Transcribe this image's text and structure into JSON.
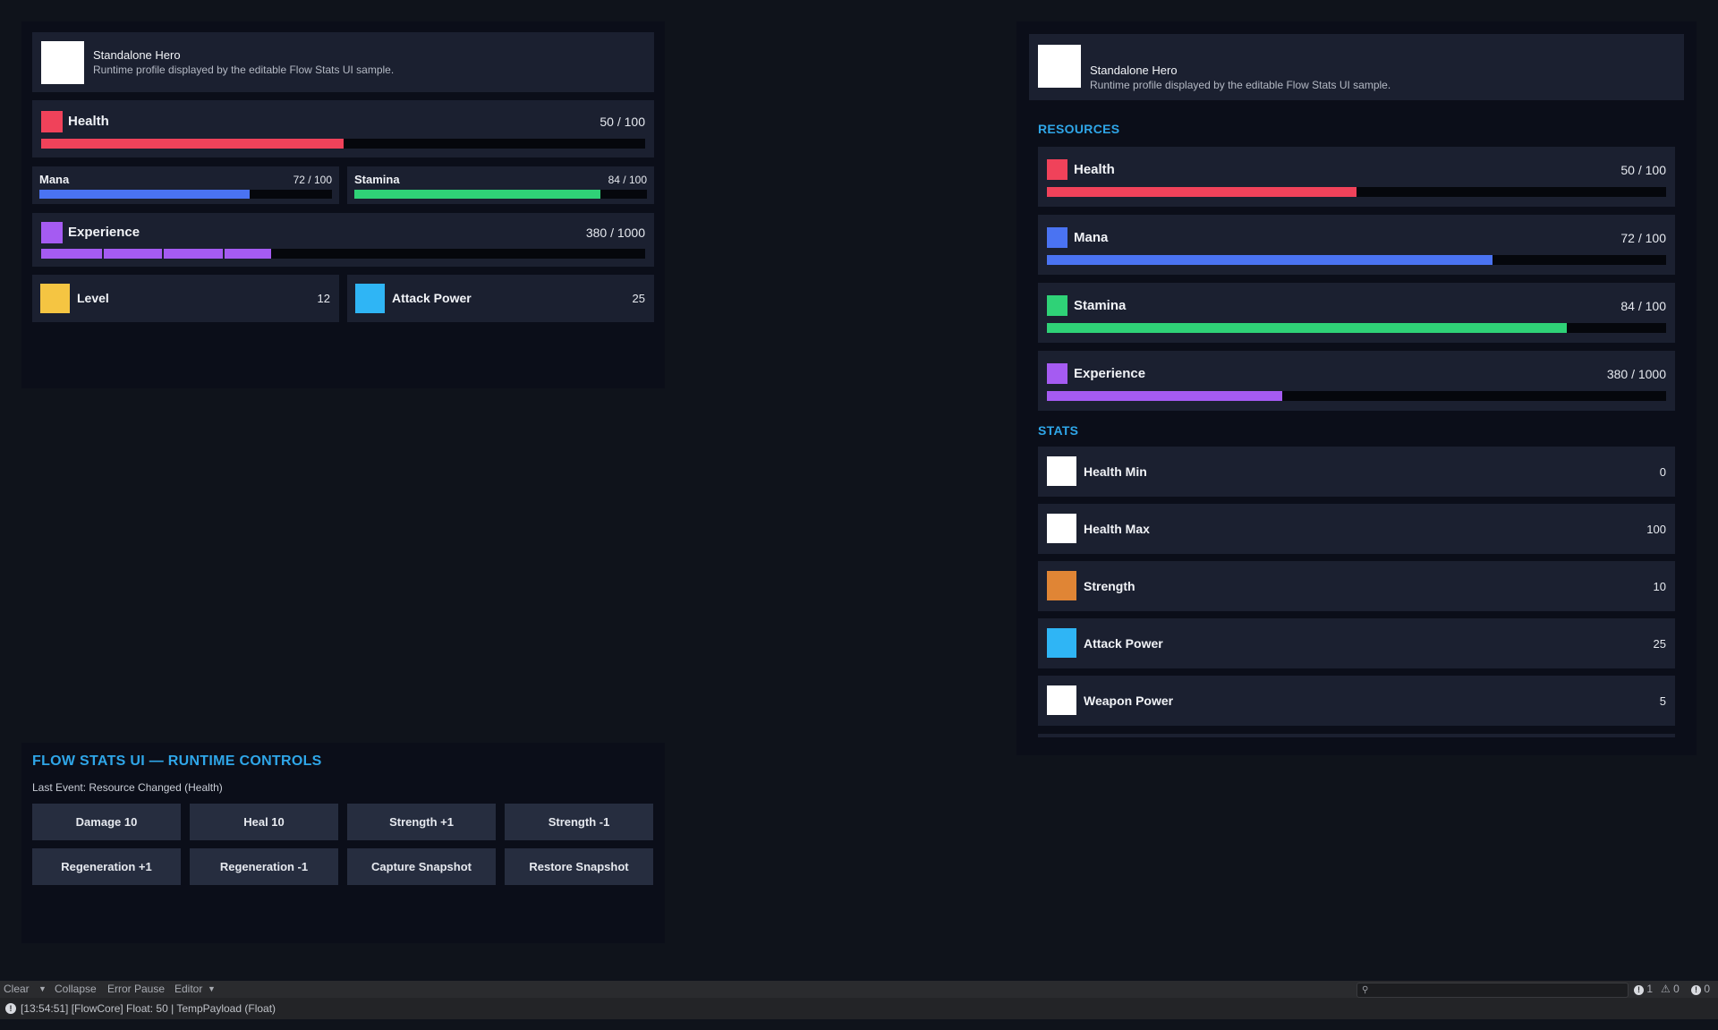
{
  "colors": {
    "health": "#f0425a",
    "mana": "#4a73f2",
    "stamina": "#2fd277",
    "experience": "#a55bf2",
    "level": "#f5c542",
    "attack_power": "#2fb5f5",
    "strength": "#e08535",
    "white": "#ffffff",
    "accent": "#2fa6e8"
  },
  "left_panel": {
    "profile": {
      "avatar": "avatar",
      "name": "Standalone Hero",
      "subtitle": "Runtime profile displayed by the editable Flow Stats UI sample."
    },
    "health": {
      "label": "Health",
      "value_text": "50 / 100",
      "fraction": 0.5
    },
    "mana": {
      "label": "Mana",
      "value_text": "72 / 100",
      "fraction": 0.72
    },
    "stamina": {
      "label": "Stamina",
      "value_text": "84 / 100",
      "fraction": 0.84
    },
    "experience": {
      "label": "Experience",
      "value_text": "380 / 1000",
      "fraction": 0.38,
      "segments": 10
    },
    "level": {
      "label": "Level",
      "value": "12"
    },
    "attack_power": {
      "label": "Attack Power",
      "value": "25"
    }
  },
  "right_panel": {
    "profile": {
      "name": "Standalone Hero",
      "subtitle": "Runtime profile displayed by the editable Flow Stats UI sample."
    },
    "resources_title": "RESOURCES",
    "resources": [
      {
        "label": "Health",
        "value_text": "50 / 100",
        "fraction": 0.5,
        "color": "#f0425a"
      },
      {
        "label": "Mana",
        "value_text": "72 / 100",
        "fraction": 0.72,
        "color": "#4a73f2"
      },
      {
        "label": "Stamina",
        "value_text": "84 / 100",
        "fraction": 0.84,
        "color": "#2fd277"
      },
      {
        "label": "Experience",
        "value_text": "380 / 1000",
        "fraction": 0.38,
        "color": "#a55bf2"
      }
    ],
    "stats_title": "STATS",
    "stats": [
      {
        "label": "Health Min",
        "value": "0",
        "color": "#ffffff"
      },
      {
        "label": "Health Max",
        "value": "100",
        "color": "#ffffff"
      },
      {
        "label": "Strength",
        "value": "10",
        "color": "#e08535"
      },
      {
        "label": "Attack Power",
        "value": "25",
        "color": "#2fb5f5"
      },
      {
        "label": "Weapon Power",
        "value": "5",
        "color": "#ffffff"
      }
    ]
  },
  "controls": {
    "title": "FLOW STATS UI — RUNTIME CONTROLS",
    "last_event": "Last Event: Resource Changed (Health)",
    "buttons": [
      "Damage 10",
      "Heal 10",
      "Strength +1",
      "Strength -1",
      "Regeneration +1",
      "Regeneration -1",
      "Capture Snapshot",
      "Restore Snapshot"
    ]
  },
  "console": {
    "clear": "Clear",
    "collapse": "Collapse",
    "error_pause": "Error Pause",
    "editor": "Editor",
    "info_count": "1",
    "warning_count": "0",
    "error_count": "0",
    "log_line": "[13:54:51] [FlowCore] Float: 50 | TempPayload (Float)"
  }
}
